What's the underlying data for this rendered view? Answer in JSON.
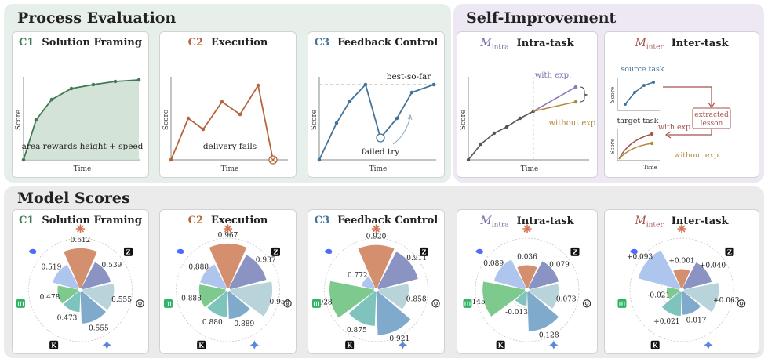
{
  "sections": {
    "process_evaluation": "Process Evaluation",
    "self_improvement": "Self-Improvement",
    "model_scores": "Model Scores"
  },
  "cards": {
    "c1": {
      "code": "C1",
      "title": "Solution Framing",
      "color": "#3f7a52"
    },
    "c2": {
      "code": "C2",
      "title": "Execution",
      "color": "#b5653c"
    },
    "c3": {
      "code": "C3",
      "title": "Feedback Control",
      "color": "#43749b"
    },
    "intra": {
      "code": "M",
      "sub": "intra",
      "title": "Intra-task",
      "color": "#7a6ea8"
    },
    "inter": {
      "code": "M",
      "sub": "inter",
      "title": "Inter-task",
      "color": "#a3524e"
    }
  },
  "axes": {
    "ylabel": "Score",
    "xlabel": "Time"
  },
  "annotations": {
    "c1_area": "area rewards height + speed",
    "c2_fail": "delivery fails",
    "c3_best": "best-so-far",
    "c3_failed": "failed try",
    "intra_with": "with exp.",
    "intra_without": "without exp.",
    "inter_source": "source task",
    "inter_target": "target task",
    "inter_lesson1": "extracted",
    "inter_lesson2": "lesson",
    "inter_with": "with exp.",
    "inter_without": "without exp."
  },
  "model_icons": [
    "claude-icon",
    "gpt-icon",
    "gemini-icon",
    "kimi-icon",
    "glm-icon",
    "zai-icon",
    "deepseek-icon"
  ],
  "chart_data": [
    {
      "type": "radial-bar",
      "panel": "C1 Solution Framing",
      "labels": [
        "0.612",
        "0.539",
        "0.555",
        "0.555",
        "0.473",
        "0.478",
        "0.519"
      ],
      "values": [
        0.612,
        0.539,
        0.555,
        0.555,
        0.473,
        0.478,
        0.519
      ]
    },
    {
      "type": "radial-bar",
      "panel": "C2 Execution",
      "labels": [
        "0.967",
        "0.937",
        "0.958",
        "0.889",
        "0.880",
        "0.888",
        "0.888"
      ],
      "values": [
        0.967,
        0.937,
        0.958,
        0.889,
        0.88,
        0.888,
        0.888
      ]
    },
    {
      "type": "radial-bar",
      "panel": "C3 Feedback Control",
      "labels": [
        "0.920",
        "0.911",
        "0.858",
        "0.921",
        "0.875",
        "0.928",
        "0.772"
      ],
      "values": [
        0.92,
        0.911,
        0.858,
        0.921,
        0.875,
        0.928,
        0.772
      ]
    },
    {
      "type": "radial-bar",
      "panel": "M_intra Intra-task",
      "labels": [
        "0.036",
        "0.079",
        "0.073",
        "0.128",
        "-0.013",
        "0.145",
        "0.089"
      ],
      "values": [
        0.036,
        0.079,
        0.073,
        0.128,
        -0.013,
        0.145,
        0.089
      ]
    },
    {
      "type": "radial-bar",
      "panel": "M_inter Inter-task",
      "labels": [
        "+0.001",
        "+0.040",
        "+0.063",
        "0.017",
        "+0.021",
        "-0.021",
        "+0.093"
      ],
      "values": [
        0.001,
        0.04,
        0.063,
        0.017,
        0.021,
        -0.021,
        0.093
      ]
    }
  ]
}
